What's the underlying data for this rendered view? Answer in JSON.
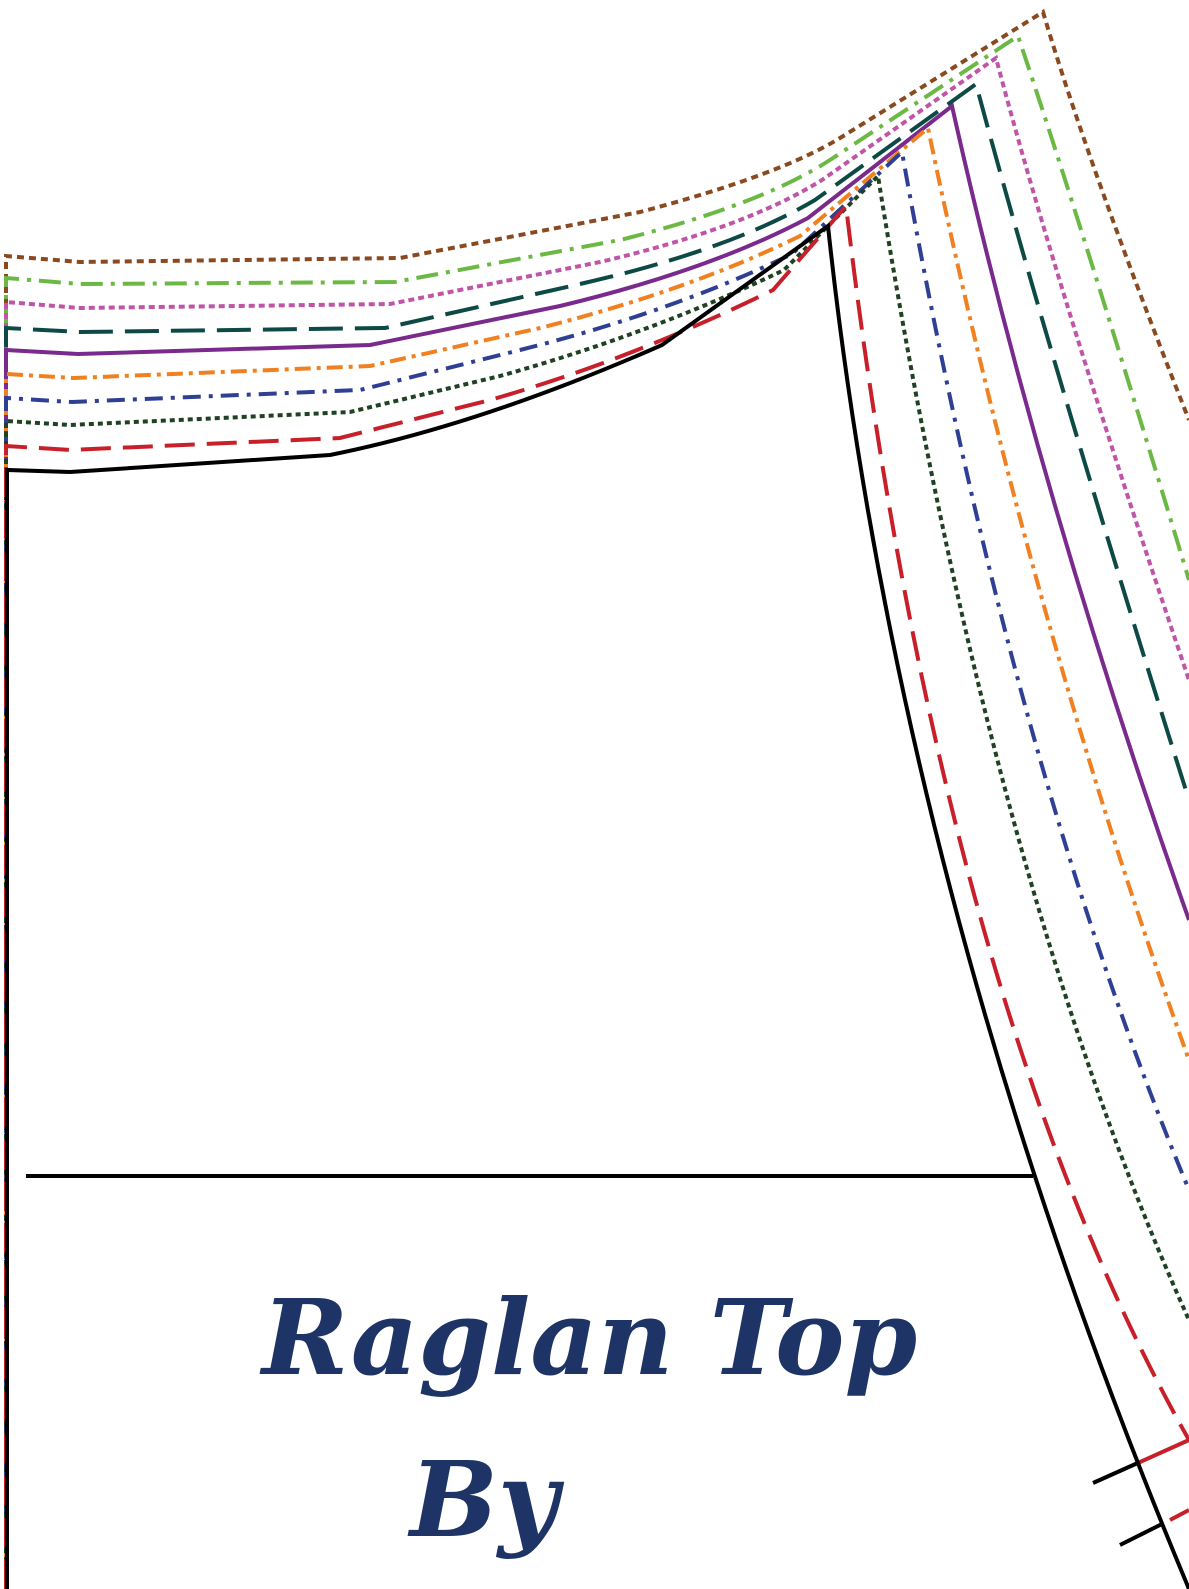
{
  "title": {
    "line1": "Raglan Top",
    "line2": "By"
  },
  "colors": {
    "cut_line": "#000000",
    "title": "#1f3466",
    "size_red": "#c8202a",
    "size_dark_green": "#1e4222",
    "size_blue": "#2e3f94",
    "size_orange": "#f08020",
    "size_purple": "#7a2a8c",
    "size_teal": "#0d4a45",
    "size_pink": "#c055a8",
    "size_green": "#6cb845",
    "size_brown": "#8a4a20"
  }
}
